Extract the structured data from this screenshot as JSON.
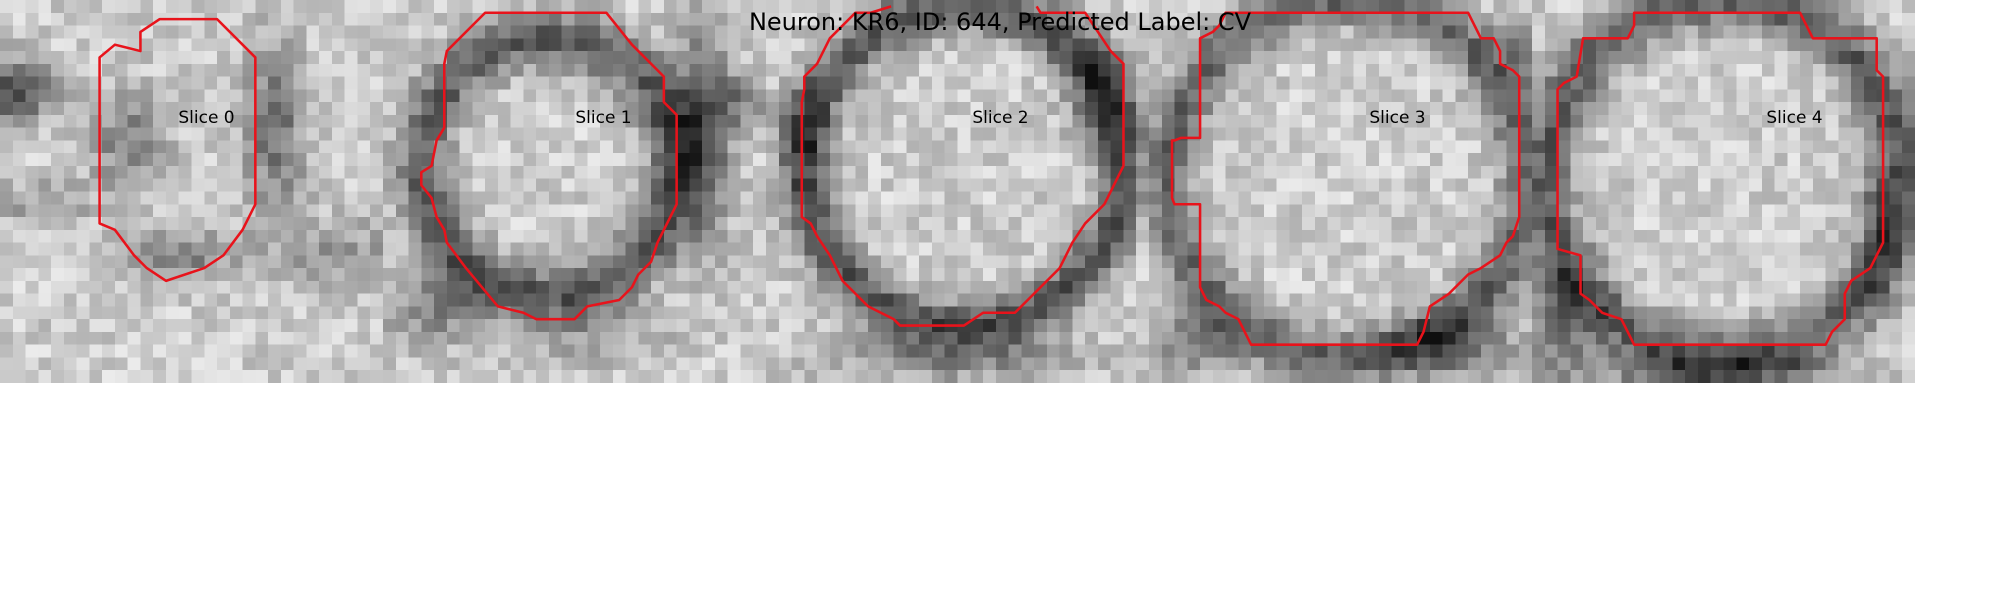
{
  "figure": {
    "title": "Neuron: KR6, ID: 644, Predicted Label: CV",
    "contour_color": "#e8131b"
  },
  "panels": [
    {
      "title": "Slice 0"
    },
    {
      "title": "Slice 1"
    },
    {
      "title": "Slice 2"
    },
    {
      "title": "Slice 3"
    },
    {
      "title": "Slice 4"
    }
  ]
}
